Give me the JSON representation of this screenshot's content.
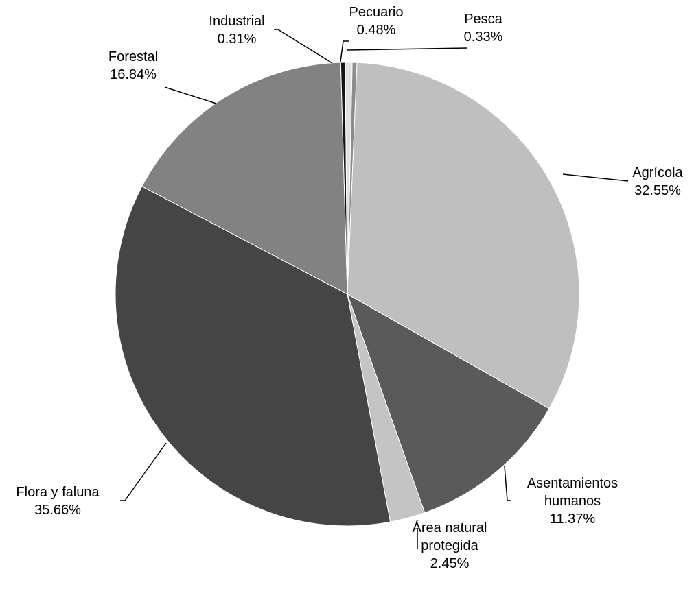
{
  "chart_data": {
    "type": "pie",
    "title": "",
    "slices": [
      {
        "name": "Pesca",
        "value": 0.33,
        "label": "Pesca",
        "pct": "0.33%",
        "color": "#8c8c8c"
      },
      {
        "name": "Agrícola",
        "value": 32.55,
        "label": "Agrícola",
        "pct": "32.55%",
        "color": "#bfbfbf"
      },
      {
        "name": "Asentamientos humanos",
        "value": 11.37,
        "label": "Asentamientos\nhumanos",
        "pct": "11.37%",
        "color": "#5a5a5a"
      },
      {
        "name": "Área natural protegida",
        "value": 2.45,
        "label": "Área natural\nprotegida",
        "pct": "2.45%",
        "color": "#c4c4c4"
      },
      {
        "name": "Flora y faluna",
        "value": 35.66,
        "label": "Flora y faluna",
        "pct": "35.66%",
        "color": "#454545"
      },
      {
        "name": "Forestal",
        "value": 16.84,
        "label": "Forestal",
        "pct": "16.84%",
        "color": "#828282"
      },
      {
        "name": "Industrial",
        "value": 0.31,
        "label": "Industrial",
        "pct": "0.31%",
        "color": "#151515"
      },
      {
        "name": "Pecuario",
        "value": 0.48,
        "label": "Pecuario",
        "pct": "0.48%",
        "color": "#e0e0e0"
      }
    ]
  }
}
